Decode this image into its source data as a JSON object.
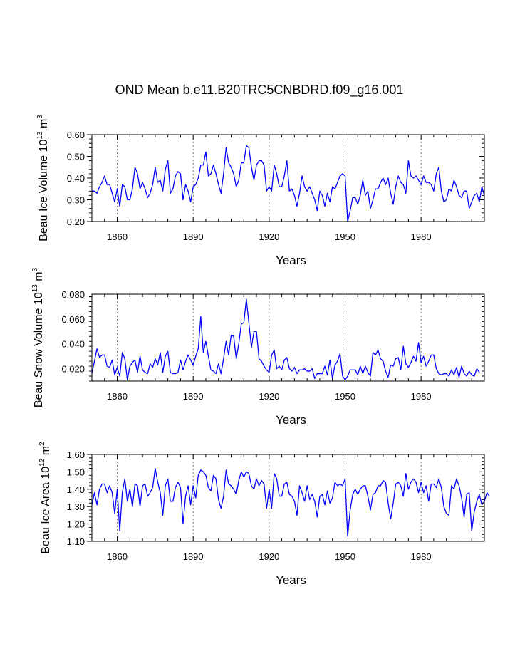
{
  "chart_data": {
    "title": "OND Mean b.e11.B20TRC5CNBDRD.f09_g16.001",
    "type": "line",
    "line_color": "#0000ff",
    "years_start": 1850,
    "years_end": 2005,
    "x_ticks": [
      1860,
      1890,
      1920,
      1950,
      1980
    ],
    "x_tick_labels": [
      "1860",
      "1890",
      "1920",
      "1950",
      "1980"
    ],
    "panels": [
      {
        "id": "volume",
        "ylabel_main": "Beau Ice Volume 10",
        "ylabel_exp": "13",
        "ylabel_unit": " m",
        "ylabel_unit_exp": "3",
        "xlabel": "Years",
        "ylim": [
          0.2,
          0.6
        ],
        "y_ticks": [
          0.2,
          0.3,
          0.4,
          0.5,
          0.6
        ],
        "y_tick_labels": [
          "0.20",
          "0.30",
          "0.40",
          "0.50",
          "0.60"
        ],
        "values": [
          0.34,
          0.34,
          0.33,
          0.36,
          0.38,
          0.41,
          0.37,
          0.37,
          0.33,
          0.29,
          0.35,
          0.27,
          0.37,
          0.36,
          0.3,
          0.3,
          0.35,
          0.45,
          0.42,
          0.35,
          0.38,
          0.35,
          0.31,
          0.33,
          0.37,
          0.45,
          0.38,
          0.39,
          0.34,
          0.44,
          0.48,
          0.33,
          0.35,
          0.41,
          0.43,
          0.42,
          0.3,
          0.37,
          0.34,
          0.29,
          0.36,
          0.37,
          0.4,
          0.46,
          0.46,
          0.52,
          0.41,
          0.42,
          0.46,
          0.42,
          0.37,
          0.33,
          0.42,
          0.54,
          0.47,
          0.45,
          0.42,
          0.36,
          0.39,
          0.47,
          0.47,
          0.55,
          0.54,
          0.45,
          0.39,
          0.46,
          0.48,
          0.48,
          0.46,
          0.34,
          0.36,
          0.34,
          0.46,
          0.42,
          0.36,
          0.36,
          0.41,
          0.48,
          0.34,
          0.35,
          0.32,
          0.27,
          0.33,
          0.41,
          0.36,
          0.34,
          0.36,
          0.33,
          0.3,
          0.25,
          0.34,
          0.32,
          0.27,
          0.33,
          0.29,
          0.36,
          0.35,
          0.38,
          0.41,
          0.42,
          0.41,
          0.2,
          0.25,
          0.31,
          0.31,
          0.28,
          0.32,
          0.39,
          0.32,
          0.34,
          0.26,
          0.3,
          0.35,
          0.35,
          0.38,
          0.4,
          0.37,
          0.4,
          0.33,
          0.28,
          0.36,
          0.41,
          0.38,
          0.37,
          0.33,
          0.48,
          0.41,
          0.4,
          0.41,
          0.39,
          0.37,
          0.41,
          0.38,
          0.38,
          0.37,
          0.34,
          0.42,
          0.45,
          0.34,
          0.29,
          0.3,
          0.35,
          0.34,
          0.39,
          0.36,
          0.32,
          0.31,
          0.34,
          0.34,
          0.26,
          0.29,
          0.32,
          0.33,
          0.29,
          0.36,
          0.32
        ]
      },
      {
        "id": "snow",
        "ylabel_main": "Beau Snow Volume 10",
        "ylabel_exp": "13",
        "ylabel_unit": " m",
        "ylabel_unit_exp": "3",
        "xlabel": "Years",
        "ylim": [
          0.01,
          0.08
        ],
        "y_ticks": [
          0.02,
          0.04,
          0.06,
          0.08
        ],
        "y_tick_labels": [
          "0.020",
          "0.040",
          "0.060",
          "0.080"
        ],
        "values": [
          0.016,
          0.026,
          0.036,
          0.029,
          0.031,
          0.031,
          0.022,
          0.021,
          0.027,
          0.015,
          0.021,
          0.014,
          0.033,
          0.028,
          0.011,
          0.022,
          0.025,
          0.027,
          0.017,
          0.03,
          0.019,
          0.017,
          0.016,
          0.024,
          0.021,
          0.028,
          0.023,
          0.033,
          0.017,
          0.03,
          0.034,
          0.017,
          0.016,
          0.016,
          0.017,
          0.027,
          0.019,
          0.026,
          0.031,
          0.027,
          0.023,
          0.03,
          0.036,
          0.062,
          0.033,
          0.042,
          0.03,
          0.019,
          0.018,
          0.016,
          0.024,
          0.016,
          0.028,
          0.042,
          0.031,
          0.047,
          0.046,
          0.028,
          0.04,
          0.056,
          0.057,
          0.076,
          0.057,
          0.037,
          0.05,
          0.05,
          0.028,
          0.026,
          0.022,
          0.019,
          0.017,
          0.031,
          0.035,
          0.02,
          0.022,
          0.019,
          0.027,
          0.029,
          0.02,
          0.018,
          0.021,
          0.016,
          0.019,
          0.019,
          0.02,
          0.018,
          0.018,
          0.02,
          0.012,
          0.016,
          0.016,
          0.016,
          0.022,
          0.015,
          0.027,
          0.012,
          0.023,
          0.026,
          0.032,
          0.014,
          0.011,
          0.014,
          0.019,
          0.019,
          0.019,
          0.015,
          0.022,
          0.016,
          0.022,
          0.017,
          0.014,
          0.033,
          0.031,
          0.035,
          0.028,
          0.026,
          0.018,
          0.013,
          0.023,
          0.022,
          0.028,
          0.029,
          0.019,
          0.038,
          0.024,
          0.021,
          0.025,
          0.03,
          0.026,
          0.041,
          0.025,
          0.03,
          0.022,
          0.026,
          0.031,
          0.031,
          0.02,
          0.016,
          0.015,
          0.016,
          0.016,
          0.014,
          0.019,
          0.015,
          0.021,
          0.013,
          0.022,
          0.016,
          0.014,
          0.018,
          0.015,
          0.014,
          0.02,
          0.017
        ]
      },
      {
        "id": "area",
        "ylabel_main": "Beau Ice Area 10",
        "ylabel_exp": "12",
        "ylabel_unit": " m",
        "ylabel_unit_exp": "2",
        "xlabel": "Years",
        "ylim": [
          1.1,
          1.6
        ],
        "y_ticks": [
          1.1,
          1.2,
          1.3,
          1.4,
          1.5,
          1.6
        ],
        "y_tick_labels": [
          "1.10",
          "1.20",
          "1.30",
          "1.40",
          "1.50",
          "1.60"
        ],
        "values": [
          1.31,
          1.38,
          1.31,
          1.4,
          1.43,
          1.43,
          1.38,
          1.42,
          1.38,
          1.26,
          1.4,
          1.16,
          1.38,
          1.46,
          1.33,
          1.4,
          1.3,
          1.43,
          1.42,
          1.3,
          1.42,
          1.43,
          1.36,
          1.38,
          1.41,
          1.52,
          1.44,
          1.38,
          1.25,
          1.42,
          1.46,
          1.33,
          1.33,
          1.41,
          1.44,
          1.41,
          1.2,
          1.36,
          1.42,
          1.31,
          1.42,
          1.35,
          1.48,
          1.51,
          1.5,
          1.48,
          1.41,
          1.39,
          1.48,
          1.46,
          1.34,
          1.29,
          1.36,
          1.51,
          1.43,
          1.42,
          1.4,
          1.37,
          1.45,
          1.5,
          1.47,
          1.5,
          1.49,
          1.42,
          1.4,
          1.46,
          1.42,
          1.45,
          1.43,
          1.29,
          1.4,
          1.29,
          1.49,
          1.46,
          1.36,
          1.36,
          1.43,
          1.44,
          1.37,
          1.36,
          1.33,
          1.25,
          1.42,
          1.38,
          1.33,
          1.42,
          1.34,
          1.37,
          1.33,
          1.24,
          1.36,
          1.37,
          1.31,
          1.39,
          1.32,
          1.35,
          1.44,
          1.42,
          1.43,
          1.42,
          1.46,
          1.13,
          1.28,
          1.37,
          1.4,
          1.37,
          1.4,
          1.42,
          1.42,
          1.36,
          1.28,
          1.37,
          1.38,
          1.42,
          1.42,
          1.45,
          1.44,
          1.32,
          1.23,
          1.32,
          1.43,
          1.44,
          1.42,
          1.36,
          1.49,
          1.4,
          1.44,
          1.46,
          1.44,
          1.38,
          1.44,
          1.38,
          1.42,
          1.33,
          1.43,
          1.43,
          1.41,
          1.46,
          1.41,
          1.3,
          1.26,
          1.25,
          1.42,
          1.4,
          1.46,
          1.42,
          1.35,
          1.24,
          1.37,
          1.38,
          1.16,
          1.27,
          1.33,
          1.37,
          1.31,
          1.33,
          1.38,
          1.36
        ]
      }
    ]
  }
}
